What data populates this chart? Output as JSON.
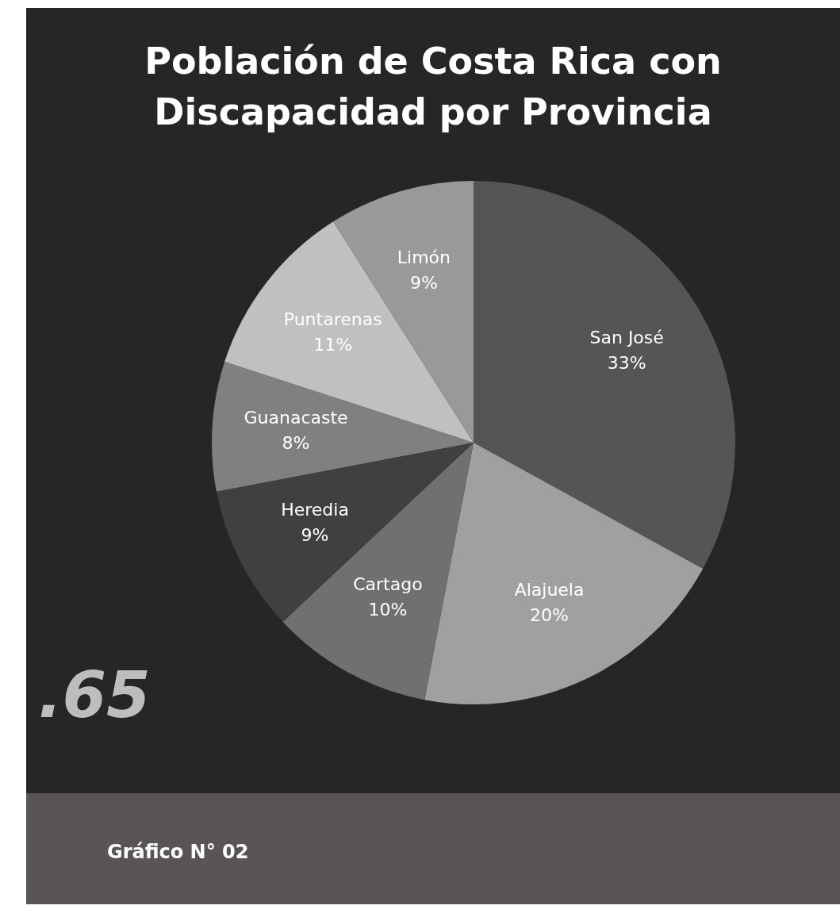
{
  "chart_data": {
    "type": "pie",
    "title": "Población de Costa Rica con Discapacidad por Provincia",
    "categories": [
      "San José",
      "Alajuela",
      "Cartago",
      "Heredia",
      "Guanacaste",
      "Puntarenas",
      "Limón"
    ],
    "values": [
      33,
      20,
      10,
      9,
      8,
      11,
      9
    ],
    "value_labels": [
      "33%",
      "20%",
      "10%",
      "9%",
      "8%",
      "11%",
      "9%"
    ],
    "colors": [
      "#555555",
      "#a0a0a0",
      "#707070",
      "#404040",
      "#808080",
      "#c0c0c0",
      "#999999"
    ],
    "legend": false,
    "annotations": [
      ".65",
      "Gráfico N° 02"
    ]
  }
}
